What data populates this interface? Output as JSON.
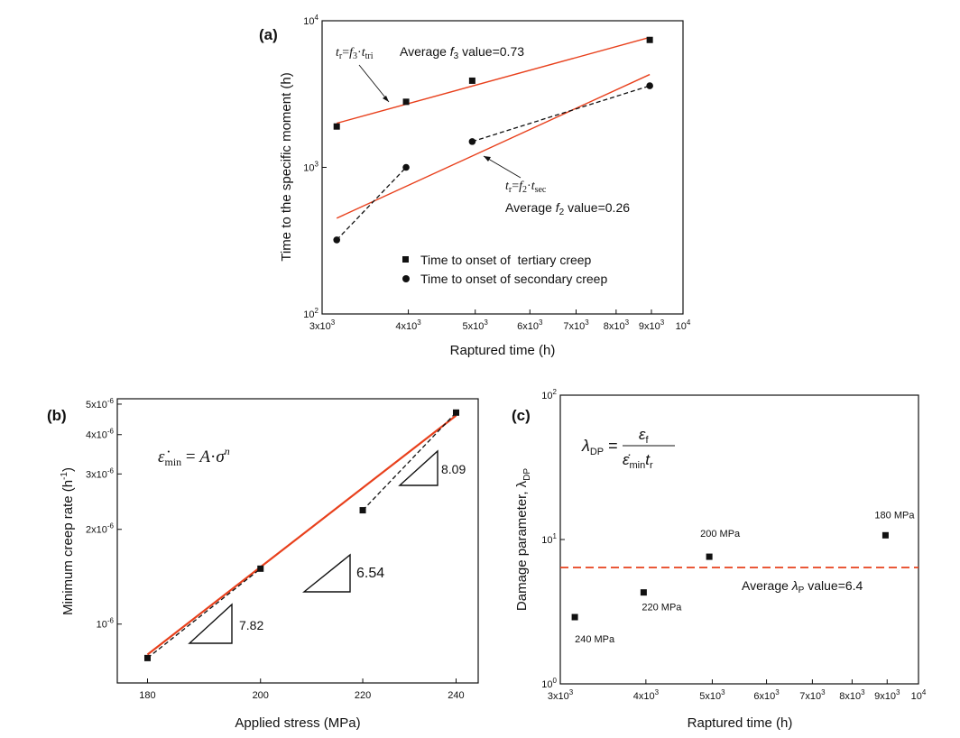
{
  "chart_data": [
    {
      "id": "a",
      "panel_label": "(a)",
      "type": "scatter",
      "xlabel": "Raptured time (h)",
      "ylabel": "Time to the specific moment (h)",
      "xscale": "log",
      "yscale": "log",
      "xlim": [
        3000,
        10000
      ],
      "ylim": [
        100,
        10000
      ],
      "x_ticks": [
        {
          "v": 3000,
          "m": "3x10",
          "e": "3"
        },
        {
          "v": 4000,
          "m": "4x10",
          "e": "3"
        },
        {
          "v": 5000,
          "m": "5x10",
          "e": "3"
        },
        {
          "v": 6000,
          "m": "6x10",
          "e": "3"
        },
        {
          "v": 7000,
          "m": "7x10",
          "e": "3"
        },
        {
          "v": 8000,
          "m": "8x10",
          "e": "3"
        },
        {
          "v": 9000,
          "m": "9x10",
          "e": "3"
        },
        {
          "v": 10000,
          "m": "10",
          "e": "4"
        }
      ],
      "y_ticks": [
        {
          "v": 100,
          "m": "10",
          "e": "2"
        },
        {
          "v": 1000,
          "m": "10",
          "e": "3"
        },
        {
          "v": 10000,
          "m": "10",
          "e": "4"
        }
      ],
      "series": [
        {
          "name": "Time to onset of  tertiary creep",
          "marker": "square",
          "x": [
            3150,
            3970,
            4950,
            8950
          ],
          "y": [
            1900,
            2800,
            3900,
            7400
          ]
        },
        {
          "name": "Time to onset of secondary creep",
          "marker": "circle",
          "x": [
            3150,
            3970,
            4950,
            8950
          ],
          "y": [
            320,
            1000,
            1500,
            3600
          ]
        }
      ],
      "fit_lines": [
        {
          "x": [
            3150,
            8950
          ],
          "y": [
            2000,
            7700
          ],
          "color": "#e8401c"
        },
        {
          "x": [
            3150,
            8950
          ],
          "y": [
            450,
            4300
          ],
          "color": "#e8401c"
        }
      ],
      "dashed_segments": [
        {
          "x": [
            3150,
            3970
          ],
          "y": [
            320,
            1000
          ]
        },
        {
          "x": [
            4950,
            8950
          ],
          "y": [
            1500,
            3600
          ]
        }
      ],
      "legend_position": "bottom-right",
      "annotations": {
        "f3_equation": "tr=f3·ttri",
        "f3_text_pre": "Average ",
        "f3_symbol": "f",
        "f3_sub": "3",
        "f3_text_post": " value=0.73",
        "f2_equation": "tr=f2·tsec",
        "f2_text_pre": "Average ",
        "f2_symbol": "f",
        "f2_sub": "2",
        "f2_text_post": " value=0.26"
      }
    },
    {
      "id": "b",
      "panel_label": "(b)",
      "type": "scatter",
      "xlabel": "Applied stress (MPa)",
      "ylabel": "Minimum creep rate (h",
      "ylabel_sup": "-1",
      "ylabel_end": ")",
      "xscale": "log",
      "yscale": "log",
      "xlim": [
        175,
        245
      ],
      "ylim": [
        6.5e-07,
        5.2e-06
      ],
      "x_ticks": [
        {
          "v": 180,
          "m": "180"
        },
        {
          "v": 200,
          "m": "200"
        },
        {
          "v": 220,
          "m": "220"
        },
        {
          "v": 240,
          "m": "240"
        }
      ],
      "y_ticks": [
        {
          "v": 1e-06,
          "m": "10",
          "e": "-6"
        },
        {
          "v": 2e-06,
          "m": "2x10",
          "e": "-6"
        },
        {
          "v": 3e-06,
          "m": "3x10",
          "e": "-6"
        },
        {
          "v": 4e-06,
          "m": "4x10",
          "e": "-6"
        },
        {
          "v": 5e-06,
          "m": "5x10",
          "e": "-6"
        }
      ],
      "series": [
        {
          "name": "",
          "marker": "square",
          "x": [
            180,
            200,
            220,
            240
          ],
          "y": [
            7.8e-07,
            1.5e-06,
            2.3e-06,
            4.7e-06
          ]
        }
      ],
      "fit_lines": [
        {
          "x": [
            180,
            240
          ],
          "y": [
            8e-07,
            4.6e-06
          ],
          "color": "#e8401c"
        }
      ],
      "dashed_segments": [
        {
          "x": [
            180,
            200
          ],
          "y": [
            7.8e-07,
            1.5e-06
          ]
        },
        {
          "x": [
            220,
            240
          ],
          "y": [
            2.3e-06,
            4.7e-06
          ]
        }
      ],
      "equation": "ε̇min = A·σn",
      "slopes": [
        "7.82",
        "6.54",
        "8.09"
      ]
    },
    {
      "id": "c",
      "panel_label": "(c)",
      "type": "scatter",
      "xlabel": "Raptured time (h)",
      "ylabel": "Damage parameter, λ",
      "ylabel_sub": "DP",
      "xscale": "log",
      "yscale": "log",
      "xlim": [
        3000,
        10000
      ],
      "ylim": [
        1,
        100
      ],
      "x_ticks": [
        {
          "v": 3000,
          "m": "3x10",
          "e": "3"
        },
        {
          "v": 4000,
          "m": "4x10",
          "e": "3"
        },
        {
          "v": 5000,
          "m": "5x10",
          "e": "3"
        },
        {
          "v": 6000,
          "m": "6x10",
          "e": "3"
        },
        {
          "v": 7000,
          "m": "7x10",
          "e": "3"
        },
        {
          "v": 8000,
          "m": "8x10",
          "e": "3"
        },
        {
          "v": 9000,
          "m": "9x10",
          "e": "3"
        },
        {
          "v": 10000,
          "m": "10",
          "e": "4"
        }
      ],
      "y_ticks": [
        {
          "v": 1,
          "m": "10",
          "e": "0"
        },
        {
          "v": 10,
          "m": "10",
          "e": "1"
        },
        {
          "v": 100,
          "m": "10",
          "e": "2"
        }
      ],
      "series": [
        {
          "name": "",
          "marker": "square",
          "x": [
            3150,
            3970,
            4950,
            8950
          ],
          "y": [
            2.9,
            4.3,
            7.6,
            10.7
          ],
          "labels": [
            "240 MPa",
            "220 MPa",
            "200 MPa",
            "180 MPa"
          ]
        }
      ],
      "reference_line": {
        "y": 6.4,
        "style": "dashed",
        "color": "#e8401c"
      },
      "equation": "λDP = εf / ε̇min tr",
      "average_text_pre": "Average ",
      "average_symbol": "λ",
      "average_sub": "P",
      "average_text_post": " value=6.4"
    }
  ]
}
